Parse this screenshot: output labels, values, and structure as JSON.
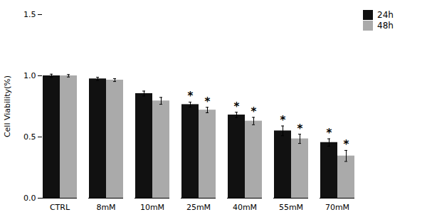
{
  "chart_data": {
    "type": "bar",
    "categories": [
      "CTRL",
      "8mM",
      "10mM",
      "25mM",
      "40mM",
      "55mM",
      "70mM"
    ],
    "series": [
      {
        "name": "24h",
        "color": "#111111",
        "values": [
          1.0,
          0.975,
          0.855,
          0.765,
          0.68,
          0.55,
          0.455
        ],
        "errors": [
          0.013,
          0.013,
          0.02,
          0.02,
          0.022,
          0.04,
          0.03
        ],
        "significance": [
          null,
          null,
          null,
          "*",
          "*",
          "*",
          "*"
        ]
      },
      {
        "name": "48h",
        "color": "#aaaaaa",
        "values": [
          1.0,
          0.965,
          0.795,
          0.72,
          0.63,
          0.485,
          0.345
        ],
        "errors": [
          0.01,
          0.012,
          0.028,
          0.022,
          0.03,
          0.038,
          0.045
        ],
        "significance": [
          null,
          null,
          null,
          "*",
          "*",
          "*",
          "*"
        ]
      }
    ],
    "ylabel": "Cell Viability(%)",
    "ylim": [
      0.0,
      1.5
    ],
    "yticks": [
      {
        "value": 0.0,
        "label": "0.0"
      },
      0.5,
      {
        "value": 1.0,
        "label": "1.0"
      },
      1.5
    ],
    "grid": false,
    "legend": "right"
  }
}
